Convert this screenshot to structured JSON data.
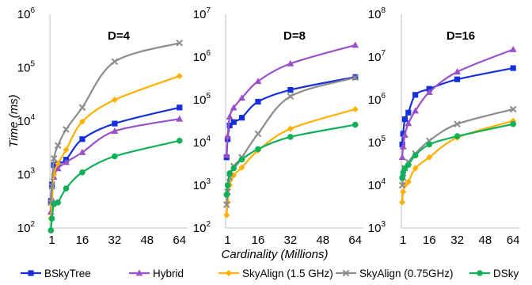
{
  "colors": {
    "BSkyTree": "#1530d8",
    "Hybrid": "#9a50c8",
    "SkyAlign15": "#ffb000",
    "SkyAlign075": "#8c8c8c",
    "DSky": "#10b058"
  },
  "chart_data": [
    {
      "type": "line",
      "title": "D=4",
      "ylabel": "Time (ms)",
      "xlabel": "Cardinality (Millions)",
      "yscale": "log",
      "ylim": [
        100,
        1000000
      ],
      "xticks": [
        1,
        16,
        32,
        48,
        64
      ],
      "yticks": [
        {
          "base": "10",
          "exp": "2"
        },
        {
          "base": "10",
          "exp": "3"
        },
        {
          "base": "10",
          "exp": "4"
        },
        {
          "base": "10",
          "exp": "5"
        },
        {
          "base": "10",
          "exp": "6"
        }
      ],
      "x": [
        0.5,
        1,
        2,
        4,
        8,
        16,
        32,
        64
      ],
      "series": [
        {
          "name": "BSkyTree",
          "marker": "square",
          "values": [
            320,
            650,
            1500,
            1600,
            1900,
            4600,
            9000,
            18000
          ]
        },
        {
          "name": "Hybrid",
          "marker": "triangle",
          "values": [
            200,
            350,
            900,
            1300,
            1700,
            2600,
            6500,
            11000
          ]
        },
        {
          "name": "SkyAlign (1.5 GHz)",
          "marker": "diamond",
          "values": [
            150,
            280,
            1000,
            1600,
            2900,
            9800,
            25000,
            70000
          ]
        },
        {
          "name": "SkyAlign (0.75GHz)",
          "marker": "x",
          "values": [
            300,
            600,
            2000,
            3500,
            7000,
            18000,
            130000,
            290000
          ]
        },
        {
          "name": "DSky",
          "marker": "circle",
          "values": [
            90,
            150,
            280,
            300,
            550,
            1100,
            2200,
            4300
          ]
        }
      ]
    },
    {
      "type": "line",
      "title": "D=8",
      "yscale": "log",
      "ylim": [
        100,
        10000000
      ],
      "xticks": [
        1,
        16,
        32,
        48,
        64
      ],
      "yticks": [
        {
          "base": "10",
          "exp": "2"
        },
        {
          "base": "10",
          "exp": "3"
        },
        {
          "base": "10",
          "exp": "4"
        },
        {
          "base": "10",
          "exp": "5"
        },
        {
          "base": "10",
          "exp": "6"
        },
        {
          "base": "10",
          "exp": "7"
        }
      ],
      "x": [
        0.5,
        1,
        2,
        4,
        8,
        16,
        32,
        64
      ],
      "series": [
        {
          "name": "BSkyTree",
          "marker": "square",
          "values": [
            4500,
            12000,
            25000,
            30000,
            38000,
            90000,
            170000,
            340000
          ]
        },
        {
          "name": "Hybrid",
          "marker": "triangle",
          "values": [
            5000,
            14000,
            40000,
            65000,
            110000,
            270000,
            700000,
            1900000
          ]
        },
        {
          "name": "SkyAlign (1.5 GHz)",
          "marker": "diamond",
          "values": [
            200,
            400,
            1000,
            1700,
            2600,
            6500,
            21000,
            60000
          ]
        },
        {
          "name": "SkyAlign (0.75GHz)",
          "marker": "x",
          "values": [
            350,
            700,
            1500,
            2800,
            4500,
            16000,
            120000,
            330000
          ]
        },
        {
          "name": "DSky",
          "marker": "circle",
          "values": [
            600,
            1000,
            1900,
            2500,
            4000,
            7000,
            13500,
            26000
          ]
        }
      ]
    },
    {
      "type": "line",
      "title": "D=16",
      "yscale": "log",
      "ylim": [
        1000,
        100000000
      ],
      "xticks": [
        1,
        16,
        32,
        48,
        64
      ],
      "yticks": [
        {
          "base": "10",
          "exp": "3"
        },
        {
          "base": "10",
          "exp": "4"
        },
        {
          "base": "10",
          "exp": "5"
        },
        {
          "base": "10",
          "exp": "6"
        },
        {
          "base": "10",
          "exp": "7"
        },
        {
          "base": "10",
          "exp": "8"
        }
      ],
      "x": [
        0.5,
        1,
        2,
        4,
        8,
        16,
        32,
        64
      ],
      "series": [
        {
          "name": "BSkyTree",
          "marker": "square",
          "values": [
            90000,
            160000,
            350000,
            500000,
            1300000,
            1800000,
            3000000,
            5500000
          ]
        },
        {
          "name": "Hybrid",
          "marker": "triangle",
          "values": [
            45000,
            80000,
            150000,
            280000,
            550000,
            1500000,
            4500000,
            15000000
          ]
        },
        {
          "name": "SkyAlign (1.5 GHz)",
          "marker": "diamond",
          "values": [
            4000,
            7000,
            10000,
            12000,
            25000,
            45000,
            130000,
            320000
          ]
        },
        {
          "name": "SkyAlign (0.75GHz)",
          "marker": "x",
          "values": [
            10000,
            15000,
            25000,
            35000,
            55000,
            110000,
            270000,
            600000
          ]
        },
        {
          "name": "DSky",
          "marker": "circle",
          "values": [
            15000,
            20000,
            25000,
            30000,
            50000,
            90000,
            140000,
            270000
          ]
        }
      ]
    }
  ],
  "legend": {
    "items": [
      {
        "label": "BSkyTree",
        "key": "BSkyTree",
        "marker": "square"
      },
      {
        "label": "Hybrid",
        "key": "Hybrid",
        "marker": "triangle"
      },
      {
        "label": "SkyAlign (1.5 GHz)",
        "key": "SkyAlign15",
        "marker": "diamond"
      },
      {
        "label": "SkyAlign (0.75GHz)",
        "key": "SkyAlign075",
        "marker": "x"
      },
      {
        "label": "DSky",
        "key": "DSky",
        "marker": "circle"
      }
    ]
  }
}
